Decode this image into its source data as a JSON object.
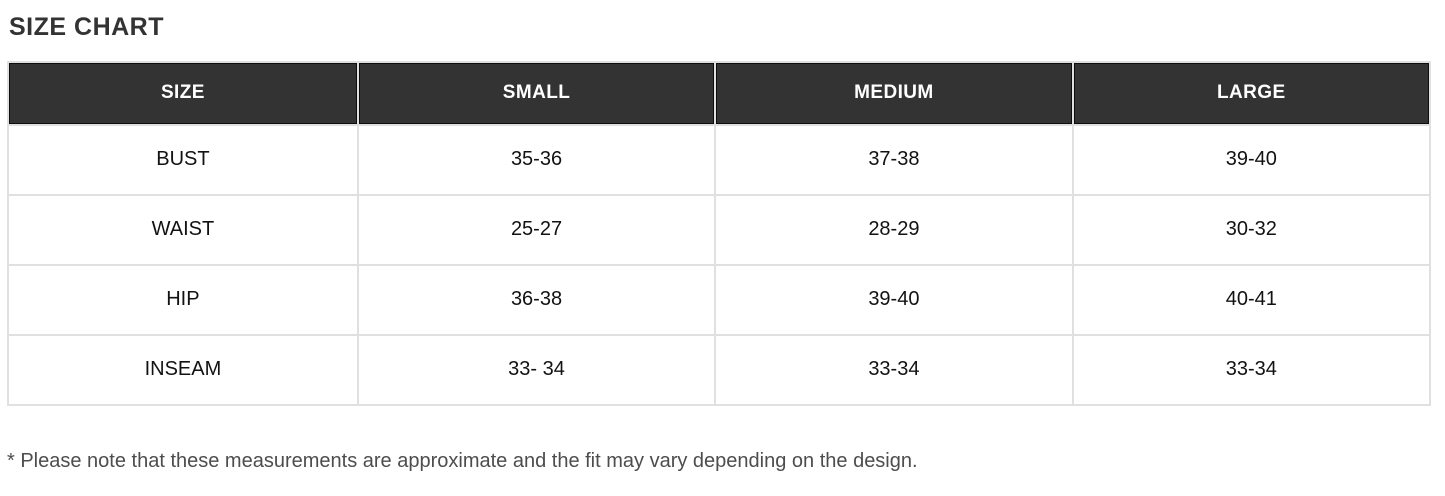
{
  "chart_data": {
    "type": "table",
    "title": "SIZE CHART",
    "columns": [
      "SIZE",
      "SMALL",
      "MEDIUM",
      "LARGE"
    ],
    "rows": [
      [
        "BUST",
        "35-36",
        "37-38",
        "39-40"
      ],
      [
        "WAIST",
        "25-27",
        "28-29",
        "30-32"
      ],
      [
        "HIP",
        "36-38",
        "39-40",
        "40-41"
      ],
      [
        "INSEAM",
        "33- 34",
        "33-34",
        "33-34"
      ]
    ],
    "footnote": "* Please note that these measurements are approximate and the fit may vary depending on the design.",
    "layout": {
      "legend": "none",
      "grid": "cell-borders"
    },
    "colors": {
      "header_bg": "#333333",
      "header_text": "#ffffff",
      "header_inner_outline": "#0d0d0d",
      "cell_border": "#e0e0e0",
      "body_text": "#121212",
      "title_text": "#333333",
      "footnote_text": "#4d4d4d",
      "background": "#ffffff"
    }
  }
}
